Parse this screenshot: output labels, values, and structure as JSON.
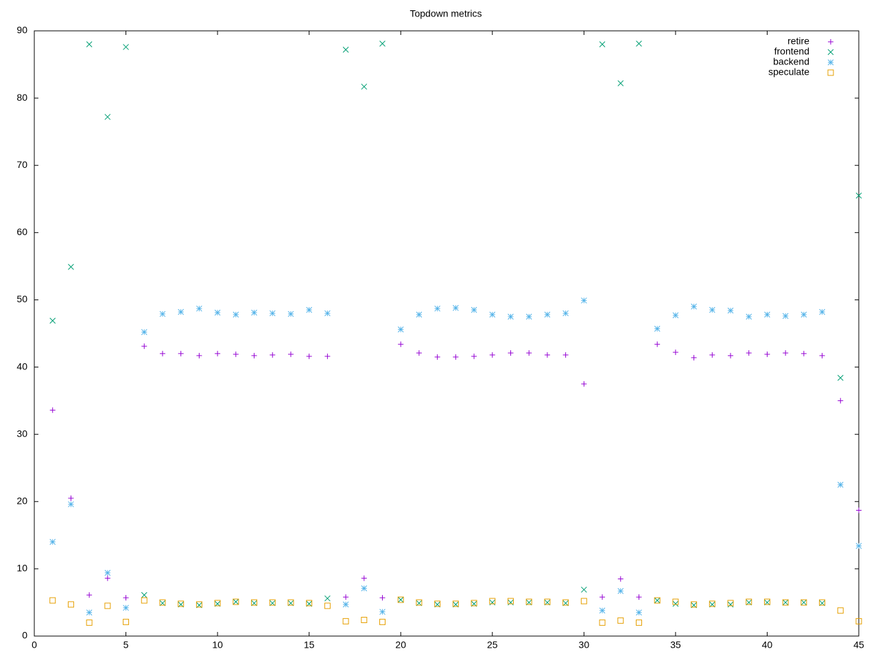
{
  "chart_data": {
    "type": "scatter",
    "title": "Topdown metrics",
    "x": [
      1,
      2,
      3,
      4,
      5,
      6,
      7,
      8,
      9,
      10,
      11,
      12,
      13,
      14,
      15,
      16,
      17,
      18,
      19,
      20,
      21,
      22,
      23,
      24,
      25,
      26,
      27,
      28,
      29,
      30,
      31,
      32,
      33,
      34,
      35,
      36,
      37,
      38,
      39,
      40,
      41,
      42,
      43,
      44,
      45
    ],
    "series": [
      {
        "name": "retire",
        "color": "#9400d3",
        "marker": "plus",
        "values": [
          33.6,
          20.5,
          6.1,
          8.6,
          5.7,
          43.1,
          42.0,
          42.0,
          41.7,
          42.0,
          41.9,
          41.7,
          41.8,
          41.9,
          41.6,
          41.6,
          5.8,
          8.6,
          5.7,
          43.4,
          42.1,
          41.5,
          41.5,
          41.6,
          41.8,
          42.1,
          42.1,
          41.8,
          41.8,
          37.5,
          5.8,
          8.5,
          5.8,
          43.4,
          42.2,
          41.4,
          41.8,
          41.7,
          42.1,
          41.9,
          42.1,
          42.0,
          41.7,
          35.0,
          18.7
        ]
      },
      {
        "name": "frontend",
        "color": "#009e73",
        "marker": "cross",
        "values": [
          46.9,
          54.9,
          88.0,
          77.2,
          87.6,
          6.1,
          4.9,
          4.7,
          4.6,
          4.8,
          5.1,
          4.9,
          4.9,
          4.9,
          4.8,
          5.6,
          87.2,
          81.7,
          88.1,
          5.4,
          4.9,
          4.7,
          4.7,
          4.8,
          5.0,
          5.0,
          5.0,
          5.0,
          4.9,
          6.9,
          88.0,
          82.2,
          88.1,
          5.3,
          4.8,
          4.6,
          4.7,
          4.7,
          5.0,
          5.0,
          5.0,
          5.0,
          4.9,
          38.4,
          65.5
        ]
      },
      {
        "name": "backend",
        "color": "#56b4e9",
        "marker": "star",
        "values": [
          14.0,
          19.6,
          3.5,
          9.4,
          4.2,
          45.2,
          47.9,
          48.2,
          48.7,
          48.1,
          47.8,
          48.1,
          48.0,
          47.9,
          48.5,
          48.0,
          4.7,
          7.1,
          3.6,
          45.6,
          47.8,
          48.7,
          48.8,
          48.5,
          47.8,
          47.5,
          47.5,
          47.8,
          48.0,
          49.9,
          3.8,
          6.7,
          3.5,
          45.7,
          47.7,
          49.0,
          48.5,
          48.4,
          47.5,
          47.8,
          47.6,
          47.8,
          48.2,
          22.5,
          13.4
        ]
      },
      {
        "name": "speculate",
        "color": "#e69f00",
        "marker": "square",
        "values": [
          5.3,
          4.7,
          2.0,
          4.5,
          2.1,
          5.3,
          5.0,
          4.8,
          4.7,
          4.9,
          5.1,
          5.0,
          5.0,
          5.0,
          4.9,
          4.5,
          2.2,
          2.4,
          2.1,
          5.4,
          5.0,
          4.8,
          4.8,
          4.9,
          5.2,
          5.2,
          5.1,
          5.1,
          5.0,
          5.2,
          2.0,
          2.3,
          2.0,
          5.3,
          5.1,
          4.7,
          4.8,
          4.9,
          5.1,
          5.1,
          5.0,
          5.0,
          5.0,
          3.8,
          2.2
        ]
      }
    ],
    "xlim": [
      0,
      45
    ],
    "xticks": [
      0,
      5,
      10,
      15,
      20,
      25,
      30,
      35,
      40,
      45
    ],
    "ylim": [
      0,
      90
    ],
    "yticks": [
      0,
      10,
      20,
      30,
      40,
      50,
      60,
      70,
      80,
      90
    ],
    "legend": "top right"
  }
}
